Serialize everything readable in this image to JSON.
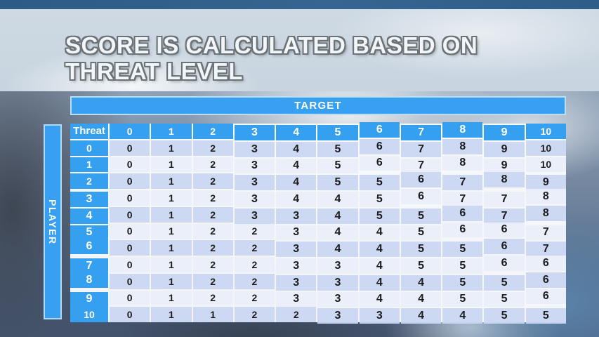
{
  "slide": {
    "title_line1": "SCORE IS CALCULATED BASED ON",
    "title_line2": "THREAT LEVEL",
    "target_label": "TARGET",
    "player_label": "PLAYER"
  },
  "colors": {
    "accent_blue": "#38a0f1",
    "row_even": "#cad7f1",
    "row_odd": "#e9eefa",
    "grid_line": "#fdfdfe",
    "title_fill": "#f3f6f8",
    "title_outline": "#6b7278",
    "top_strip": "#2f5f88",
    "title_band": "#ccd7e1",
    "cell_text": "#1c1c1e"
  },
  "chart_data": {
    "type": "table",
    "title": "Score is calculated based on threat level",
    "col_axis_label": "TARGET",
    "row_axis_label": "PLAYER",
    "corner_header": "Threat",
    "columns": [
      "0",
      "1",
      "2",
      "3",
      "4",
      "5",
      "6",
      "7",
      "8",
      "9",
      "10"
    ],
    "rows": [
      {
        "label": "0",
        "values": [
          0,
          1,
          2,
          3,
          4,
          5,
          6,
          7,
          8,
          9,
          10
        ]
      },
      {
        "label": "1",
        "values": [
          0,
          1,
          2,
          3,
          4,
          5,
          6,
          7,
          8,
          9,
          10
        ]
      },
      {
        "label": "2",
        "values": [
          0,
          1,
          2,
          3,
          4,
          5,
          5,
          6,
          7,
          8,
          9
        ]
      },
      {
        "label": "3",
        "values": [
          0,
          1,
          2,
          3,
          4,
          4,
          5,
          6,
          7,
          7,
          8
        ]
      },
      {
        "label": "4",
        "values": [
          0,
          1,
          2,
          3,
          3,
          4,
          5,
          5,
          6,
          7,
          8
        ]
      },
      {
        "label": "5",
        "values": [
          0,
          1,
          2,
          2,
          3,
          4,
          4,
          5,
          6,
          6,
          7
        ]
      },
      {
        "label": "6",
        "values": [
          0,
          1,
          2,
          2,
          3,
          4,
          4,
          5,
          5,
          6,
          7
        ]
      },
      {
        "label": "7",
        "values": [
          0,
          1,
          2,
          2,
          3,
          3,
          4,
          5,
          5,
          6,
          6
        ]
      },
      {
        "label": "8",
        "values": [
          0,
          1,
          2,
          2,
          3,
          3,
          4,
          4,
          5,
          5,
          6
        ]
      },
      {
        "label": "9",
        "values": [
          0,
          1,
          2,
          2,
          3,
          3,
          4,
          4,
          5,
          5,
          6
        ]
      },
      {
        "label": "10",
        "values": [
          0,
          1,
          1,
          2,
          2,
          3,
          3,
          4,
          4,
          5,
          5
        ]
      }
    ]
  }
}
